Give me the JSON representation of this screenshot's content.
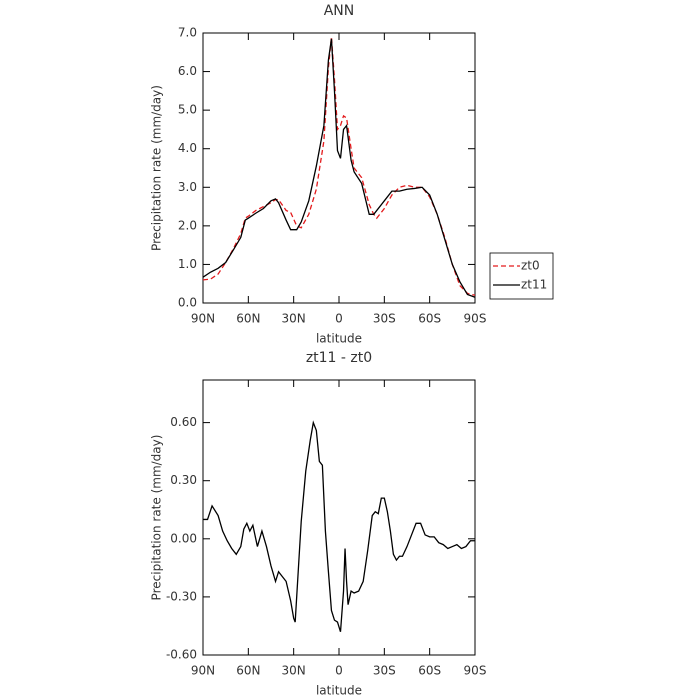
{
  "chart_data": [
    {
      "type": "line",
      "title": "ANN",
      "x_label": "latitude",
      "y_label": "Precipitation rate (mm/day)",
      "x": [
        90,
        85,
        80,
        75,
        70,
        65,
        62,
        60,
        55,
        50,
        45,
        42,
        40,
        35,
        32,
        28,
        25,
        20,
        15,
        10,
        7,
        5,
        3,
        1,
        -1,
        -3,
        -5,
        -8,
        -10,
        -15,
        -20,
        -23,
        -25,
        -30,
        -35,
        -40,
        -45,
        -50,
        -55,
        -60,
        -65,
        -70,
        -75,
        -80,
        -85,
        -90
      ],
      "series": [
        {
          "name": "zt0",
          "color": "#e31a1c",
          "line_style": "dashed",
          "values": [
            0.6,
            0.62,
            0.75,
            1.05,
            1.4,
            1.8,
            2.2,
            2.25,
            2.4,
            2.5,
            2.6,
            2.68,
            2.68,
            2.4,
            2.35,
            2.0,
            1.95,
            2.3,
            2.95,
            4.2,
            6.1,
            6.9,
            5.8,
            4.5,
            4.6,
            4.85,
            4.8,
            4.0,
            3.5,
            3.25,
            2.55,
            2.3,
            2.2,
            2.45,
            2.8,
            3.0,
            3.05,
            3.0,
            3.0,
            2.75,
            2.3,
            1.7,
            1.0,
            0.45,
            0.25,
            0.2
          ]
        },
        {
          "name": "zt11",
          "color": "#000000",
          "line_style": "solid",
          "values": [
            0.67,
            0.8,
            0.9,
            1.05,
            1.37,
            1.7,
            2.15,
            2.2,
            2.33,
            2.45,
            2.65,
            2.7,
            2.6,
            2.15,
            1.9,
            1.9,
            2.1,
            2.65,
            3.55,
            4.6,
            6.3,
            6.85,
            5.5,
            3.95,
            3.75,
            4.5,
            4.6,
            3.7,
            3.4,
            3.1,
            2.3,
            2.3,
            2.4,
            2.65,
            2.9,
            2.9,
            2.95,
            2.97,
            3.0,
            2.8,
            2.3,
            1.65,
            1.0,
            0.55,
            0.22,
            0.15
          ]
        }
      ],
      "xlim": [
        90,
        -90
      ],
      "xticks": [
        {
          "value": 90,
          "label": "90N"
        },
        {
          "value": 60,
          "label": "60N"
        },
        {
          "value": 30,
          "label": "30N"
        },
        0,
        {
          "value": -30,
          "label": "30S"
        },
        {
          "value": -60,
          "label": "60S"
        },
        {
          "value": -90,
          "label": "90S"
        }
      ],
      "ylim": [
        0,
        7
      ],
      "yticks": [
        {
          "value": 0,
          "label": "0.0"
        },
        {
          "value": 1,
          "label": "1.0"
        },
        {
          "value": 2,
          "label": "2.0"
        },
        {
          "value": 3,
          "label": "3.0"
        },
        {
          "value": 4,
          "label": "4.0"
        },
        {
          "value": 5,
          "label": "5.0"
        },
        {
          "value": 6,
          "label": "6.0"
        },
        {
          "value": 7,
          "label": "7.0"
        }
      ],
      "legend": "right"
    },
    {
      "type": "line",
      "title": "zt11 - zt0",
      "x_label": "latitude",
      "y_label": "Precipitation rate (mm/day)",
      "x": [
        90,
        87,
        84,
        80,
        77,
        74,
        71,
        68,
        65,
        63,
        61,
        59,
        57,
        54,
        51,
        48,
        45,
        42,
        40,
        38,
        35,
        32,
        30,
        29,
        27,
        25,
        22,
        19,
        17,
        15,
        13,
        11,
        9,
        7,
        5,
        3,
        1,
        -1,
        -3,
        -4,
        -5,
        -6,
        -8,
        -10,
        -13,
        -16,
        -19,
        -22,
        -24,
        -26,
        -28,
        -30,
        -32,
        -34,
        -36,
        -38,
        -40,
        -42,
        -45,
        -48,
        -51,
        -54,
        -57,
        -60,
        -63,
        -66,
        -69,
        -72,
        -75,
        -78,
        -81,
        -84,
        -87,
        -90
      ],
      "series": [
        {
          "color": "#000000",
          "line_style": "solid",
          "values": [
            0.1,
            0.1,
            0.17,
            0.12,
            0.04,
            -0.01,
            -0.05,
            -0.08,
            -0.04,
            0.05,
            0.08,
            0.04,
            0.07,
            -0.04,
            0.04,
            -0.04,
            -0.14,
            -0.22,
            -0.17,
            -0.19,
            -0.22,
            -0.32,
            -0.41,
            -0.43,
            -0.17,
            0.09,
            0.35,
            0.51,
            0.6,
            0.56,
            0.4,
            0.38,
            0.04,
            -0.17,
            -0.37,
            -0.42,
            -0.43,
            -0.48,
            -0.27,
            -0.05,
            -0.22,
            -0.34,
            -0.27,
            -0.28,
            -0.27,
            -0.22,
            -0.06,
            0.12,
            0.14,
            0.13,
            0.21,
            0.21,
            0.14,
            0.04,
            -0.08,
            -0.11,
            -0.09,
            -0.09,
            -0.04,
            0.02,
            0.08,
            0.08,
            0.02,
            0.01,
            0.01,
            -0.02,
            -0.03,
            -0.05,
            -0.04,
            -0.03,
            -0.05,
            -0.04,
            -0.01,
            -0.01
          ]
        }
      ],
      "xlim": [
        90,
        -90
      ],
      "xticks": [
        {
          "value": 90,
          "label": "90N"
        },
        {
          "value": 60,
          "label": "60N"
        },
        {
          "value": 30,
          "label": "30N"
        },
        0,
        {
          "value": -30,
          "label": "30S"
        },
        {
          "value": -60,
          "label": "60S"
        },
        {
          "value": -90,
          "label": "90S"
        }
      ],
      "ylim": [
        -0.6,
        0.82
      ],
      "yticks": [
        {
          "value": -0.6,
          "label": "-0.60"
        },
        {
          "value": -0.3,
          "label": "-0.30"
        },
        {
          "value": 0,
          "label": "0.00"
        },
        {
          "value": 0.3,
          "label": "0.30"
        },
        {
          "value": 0.6,
          "label": "0.60"
        }
      ]
    }
  ]
}
